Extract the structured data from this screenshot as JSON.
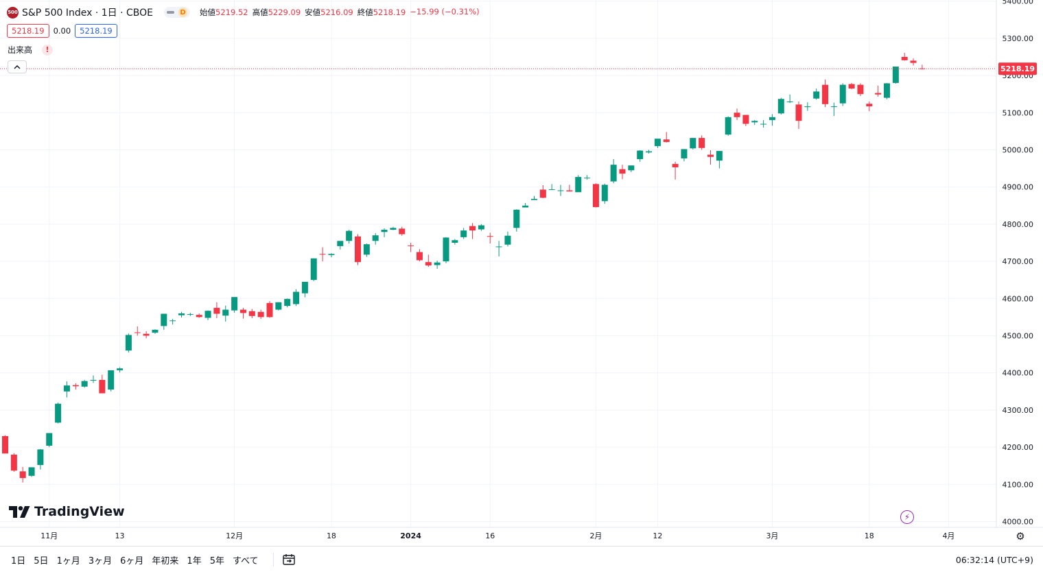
{
  "header": {
    "logo_text": "500",
    "symbol_title": "S&P 500 Index · 1日 · CBOE",
    "interval_badge": "D",
    "ohlc": {
      "open_label": "始値",
      "open": "5219.52",
      "high_label": "高値",
      "high": "5229.09",
      "low_label": "安値",
      "low": "5216.09",
      "close_label": "終値",
      "close": "5218.19",
      "change": "−15.99 (−0.31%)"
    },
    "sell_price": "5218.19",
    "spread": "0.00",
    "buy_price": "5218.19",
    "volume_label": "出来高",
    "warning": "!"
  },
  "branding": {
    "name": "TradingView"
  },
  "bottom": {
    "ranges": [
      "1日",
      "5日",
      "1ヶ月",
      "3ヶ月",
      "6ヶ月",
      "年初来",
      "1年",
      "5年",
      "すべて"
    ],
    "clock": "06:32:14 (UTC+9)"
  },
  "colors": {
    "up": "#089981",
    "down": "#f23645",
    "grid": "#f0f3fa",
    "text": "#131722",
    "purple": "#9c27b0"
  },
  "icons": [
    "collapse-chevron-icon",
    "lightning-icon",
    "settings-icon",
    "calendar-range-icon"
  ],
  "chart_data": {
    "type": "candlestick",
    "y_axis": {
      "min": 4000,
      "max": 5400,
      "step": 100,
      "side": "right",
      "tick_labels": [
        "4000.00",
        "4100.00",
        "4200.00",
        "4300.00",
        "4400.00",
        "4500.00",
        "4600.00",
        "4700.00",
        "4800.00",
        "4900.00",
        "5000.00",
        "5100.00",
        "5200.00",
        "5300.00",
        "5400.00"
      ]
    },
    "last_price": 5218.19,
    "last_price_label": "5218.19",
    "x_labels": [
      {
        "index": 5,
        "label": "11月",
        "bold": false
      },
      {
        "index": 13,
        "label": "13",
        "bold": false
      },
      {
        "index": 26,
        "label": "12月",
        "bold": false
      },
      {
        "index": 37,
        "label": "18",
        "bold": false
      },
      {
        "index": 46,
        "label": "2024",
        "bold": true
      },
      {
        "index": 55,
        "label": "16",
        "bold": false
      },
      {
        "index": 67,
        "label": "2月",
        "bold": false
      },
      {
        "index": 74,
        "label": "12",
        "bold": false
      },
      {
        "index": 87,
        "label": "3月",
        "bold": false
      },
      {
        "index": 98,
        "label": "18",
        "bold": false
      },
      {
        "index": 107,
        "label": "4月",
        "bold": false
      }
    ],
    "grid": true,
    "candles": [
      [
        4230,
        4232,
        4186,
        4183
      ],
      [
        4180,
        4184,
        4134,
        4137
      ],
      [
        4135,
        4147,
        4105,
        4117
      ],
      [
        4123,
        4144,
        4120,
        4146
      ],
      [
        4152,
        4195,
        4140,
        4194
      ],
      [
        4204,
        4237,
        4200,
        4238
      ],
      [
        4266,
        4320,
        4264,
        4317
      ],
      [
        4350,
        4377,
        4334,
        4366
      ],
      [
        4367,
        4372,
        4355,
        4364
      ],
      [
        4363,
        4381,
        4360,
        4378
      ],
      [
        4380,
        4393,
        4373,
        4381
      ],
      [
        4381,
        4395,
        4345,
        4345
      ],
      [
        4355,
        4403,
        4350,
        4407
      ],
      [
        4407,
        4415,
        4401,
        4412
      ],
      [
        4460,
        4506,
        4455,
        4502
      ],
      [
        4509,
        4525,
        4500,
        4508
      ],
      [
        4505,
        4512,
        4493,
        4500
      ],
      [
        4508,
        4517,
        4505,
        4516
      ],
      [
        4526,
        4558,
        4516,
        4559
      ],
      [
        4540,
        4545,
        4530,
        4541
      ],
      [
        4555,
        4564,
        4549,
        4560
      ],
      [
        4558,
        4562,
        4553,
        4558
      ],
      [
        4556,
        4560,
        4548,
        4550
      ],
      [
        4548,
        4568,
        4542,
        4567
      ],
      [
        4575,
        4590,
        4547,
        4559
      ],
      [
        4554,
        4581,
        4538,
        4570
      ],
      [
        4568,
        4600,
        4562,
        4604
      ],
      [
        4570,
        4575,
        4546,
        4561
      ],
      [
        4566,
        4572,
        4547,
        4553
      ],
      [
        4564,
        4570,
        4545,
        4550
      ],
      [
        4588,
        4593,
        4548,
        4550
      ],
      [
        4570,
        4590,
        4568,
        4590
      ],
      [
        4580,
        4600,
        4576,
        4599
      ],
      [
        4585,
        4625,
        4580,
        4618
      ],
      [
        4614,
        4634,
        4603,
        4645
      ],
      [
        4650,
        4708,
        4647,
        4708
      ],
      [
        4720,
        4738,
        4700,
        4719
      ],
      [
        4717,
        4722,
        4711,
        4720
      ],
      [
        4741,
        4750,
        4732,
        4755
      ],
      [
        4755,
        4785,
        4748,
        4782
      ],
      [
        4767,
        4773,
        4690,
        4698
      ],
      [
        4718,
        4748,
        4712,
        4746
      ],
      [
        4755,
        4776,
        4745,
        4770
      ],
      [
        4779,
        4789,
        4765,
        4785
      ],
      [
        4785,
        4793,
        4784,
        4790
      ],
      [
        4788,
        4793,
        4769,
        4773
      ],
      [
        4743,
        4750,
        4725,
        4742
      ],
      [
        4725,
        4733,
        4700,
        4703
      ],
      [
        4698,
        4718,
        4685,
        4689
      ],
      [
        4690,
        4702,
        4680,
        4697
      ],
      [
        4700,
        4765,
        4695,
        4764
      ],
      [
        4750,
        4760,
        4745,
        4757
      ],
      [
        4765,
        4790,
        4760,
        4783
      ],
      [
        4795,
        4803,
        4760,
        4783
      ],
      [
        4786,
        4800,
        4782,
        4797
      ],
      [
        4768,
        4777,
        4748,
        4767
      ],
      [
        4740,
        4755,
        4713,
        4740
      ],
      [
        4745,
        4780,
        4740,
        4769
      ],
      [
        4790,
        4840,
        4780,
        4839
      ],
      [
        4845,
        4857,
        4845,
        4850
      ],
      [
        4865,
        4876,
        4865,
        4868
      ],
      [
        4893,
        4905,
        4870,
        4871
      ],
      [
        4894,
        4908,
        4894,
        4894
      ],
      [
        4890,
        4906,
        4876,
        4891
      ],
      [
        4891,
        4906,
        4888,
        4888
      ],
      [
        4886,
        4932,
        4887,
        4927
      ],
      [
        4925,
        4932,
        4920,
        4925
      ],
      [
        4908,
        4910,
        4845,
        4846
      ],
      [
        4862,
        4909,
        4855,
        4906
      ],
      [
        4915,
        4975,
        4910,
        4960
      ],
      [
        4948,
        4960,
        4921,
        4936
      ],
      [
        4945,
        4958,
        4940,
        4958
      ],
      [
        4975,
        4999,
        4968,
        4998
      ],
      [
        4993,
        5000,
        4990,
        4996
      ],
      [
        5010,
        5030,
        5005,
        5030
      ],
      [
        5028,
        5048,
        5020,
        5021
      ],
      [
        4962,
        4968,
        4920,
        4953
      ],
      [
        4977,
        5002,
        4969,
        5002
      ],
      [
        5004,
        5032,
        5001,
        5032
      ],
      [
        5032,
        5039,
        5000,
        5005
      ],
      [
        4987,
        4999,
        4960,
        4981
      ],
      [
        4971,
        4987,
        4950,
        4997
      ],
      [
        5041,
        5090,
        5038,
        5088
      ],
      [
        5100,
        5111,
        5080,
        5088
      ],
      [
        5094,
        5094,
        5064,
        5070
      ],
      [
        5074,
        5080,
        5067,
        5078
      ],
      [
        5070,
        5080,
        5060,
        5070
      ],
      [
        5080,
        5096,
        5065,
        5088
      ],
      [
        5098,
        5140,
        5095,
        5137
      ],
      [
        5130,
        5149,
        5126,
        5130
      ],
      [
        5122,
        5130,
        5056,
        5078
      ],
      [
        5115,
        5128,
        5105,
        5117
      ],
      [
        5138,
        5165,
        5135,
        5157
      ],
      [
        5175,
        5189,
        5115,
        5123
      ],
      [
        5116,
        5127,
        5091,
        5117
      ],
      [
        5125,
        5179,
        5118,
        5175
      ],
      [
        5177,
        5180,
        5163,
        5165
      ],
      [
        5175,
        5179,
        5145,
        5150
      ],
      [
        5124,
        5130,
        5104,
        5117
      ],
      [
        5153,
        5173,
        5143,
        5149
      ],
      [
        5140,
        5180,
        5136,
        5179
      ],
      [
        5180,
        5223,
        5178,
        5224
      ],
      [
        5250,
        5261,
        5240,
        5241
      ],
      [
        5240,
        5246,
        5227,
        5234
      ],
      [
        5219,
        5229,
        5216,
        5218
      ]
    ]
  }
}
